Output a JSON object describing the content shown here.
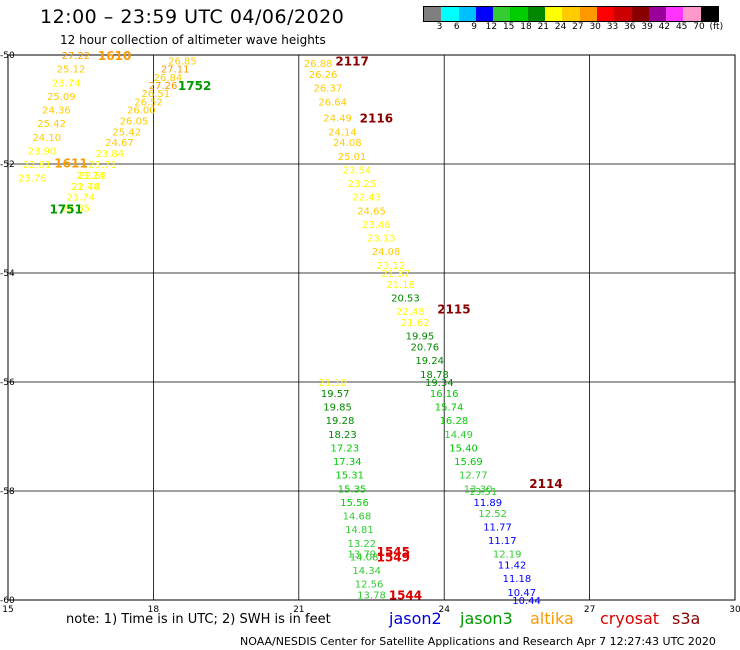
{
  "header": {
    "title": "12:00 – 23:59 UTC 04/06/2020",
    "subtitle": "12 hour collection of altimeter wave heights"
  },
  "scale": {
    "colors": [
      "#7f7f7f",
      "#00ffff",
      "#00bfff",
      "#0000ff",
      "#33cc33",
      "#00cc00",
      "#008800",
      "#ffff00",
      "#ffcc00",
      "#ff9900",
      "#ff0000",
      "#cc0000",
      "#880000",
      "#990099",
      "#ff33ff",
      "#ff99cc",
      "#000000"
    ],
    "labels": [
      "3",
      "6",
      "9",
      "12",
      "15",
      "18",
      "21",
      "24",
      "27",
      "30",
      "33",
      "36",
      "39",
      "42",
      "45",
      "70",
      "(ft)"
    ]
  },
  "note": "note:  1) Time is in UTC;  2) SWH is in feet",
  "satellites": [
    {
      "name": "jason2",
      "color": "#0000dd"
    },
    {
      "name": "jason3",
      "color": "#009900"
    },
    {
      "name": "altika",
      "color": "#ff9900"
    },
    {
      "name": "cryosat",
      "color": "#dd0000"
    },
    {
      "name": "s3a",
      "color": "#880000"
    }
  ],
  "footer": "NOAA/NESDIS Center for Satellite Applications and Research    Apr  7 12:27:43 UTC 2020",
  "chart_data": {
    "type": "scatter",
    "title": "12:00 – 23:59 UTC 04/06/2020",
    "subtitle": "12 hour collection of altimeter wave heights",
    "xlabel": "",
    "ylabel": "",
    "xlim": [
      15,
      30
    ],
    "ylim": [
      -60,
      -50
    ],
    "xticks": [
      15,
      18,
      21,
      24,
      27,
      30
    ],
    "yticks": [
      -50,
      -52,
      -54,
      -56,
      -58,
      -60
    ],
    "grid": true,
    "passes": [
      {
        "label": "1610",
        "label_pos": [
          17.2,
          -50.0
        ],
        "color": "#ff9900",
        "points": [
          [
            16.4,
            -50.0,
            "27.22"
          ],
          [
            16.3,
            -50.25,
            "25.12"
          ],
          [
            16.2,
            -50.5,
            "23.74"
          ],
          [
            16.1,
            -50.75,
            "25.09"
          ],
          [
            16.0,
            -51.0,
            "24.36"
          ],
          [
            15.9,
            -51.25,
            "25.42"
          ],
          [
            15.8,
            -51.5,
            "24.10"
          ],
          [
            15.7,
            -51.75,
            "23.90"
          ],
          [
            15.6,
            -52.0,
            "22.81"
          ],
          [
            15.5,
            -52.25,
            "23.76"
          ]
        ]
      },
      {
        "label": "1611",
        "label_pos": [
          16.3,
          -51.97
        ],
        "color": "#ff9900",
        "points": [
          [
            16.7,
            -52.2,
            "23.74"
          ],
          [
            16.6,
            -52.4,
            "21.74"
          ],
          [
            16.5,
            -52.6,
            "21.74"
          ],
          [
            16.4,
            -52.8,
            "22.85"
          ]
        ]
      },
      {
        "label": "1751",
        "label_pos": [
          16.2,
          -52.82
        ],
        "color": "#009900",
        "points": []
      },
      {
        "label": "1752",
        "label_pos": [
          18.85,
          -50.55
        ],
        "color": "#009900",
        "points": [
          [
            18.6,
            -50.1,
            "26.85"
          ],
          [
            18.45,
            -50.25,
            "27.11"
          ],
          [
            18.3,
            -50.4,
            "26.84"
          ],
          [
            18.2,
            -50.55,
            "27.26"
          ],
          [
            18.05,
            -50.7,
            "26.51"
          ],
          [
            17.9,
            -50.85,
            "26.52"
          ],
          [
            17.75,
            -51.0,
            "26.00"
          ],
          [
            17.6,
            -51.2,
            "26.05"
          ],
          [
            17.45,
            -51.4,
            "25.42"
          ],
          [
            17.3,
            -51.6,
            "24.67"
          ],
          [
            17.1,
            -51.8,
            "23.84"
          ],
          [
            16.95,
            -52.0,
            "23.71"
          ],
          [
            16.75,
            -52.2,
            "22.62"
          ],
          [
            16.6,
            -52.4,
            "22.48"
          ]
        ]
      },
      {
        "label": "2117",
        "label_pos": [
          22.1,
          -50.1
        ],
        "color": "#880000",
        "points": [
          [
            21.4,
            -50.15,
            "26.88"
          ],
          [
            21.5,
            -50.35,
            "26.26"
          ],
          [
            21.6,
            -50.6,
            "26.37"
          ],
          [
            21.7,
            -50.85,
            "26.64"
          ]
        ]
      },
      {
        "label": "2116",
        "label_pos": [
          22.6,
          -51.15
        ],
        "color": "#880000",
        "points": [
          [
            21.8,
            -51.15,
            "24.49"
          ],
          [
            21.9,
            -51.4,
            "24.14"
          ],
          [
            22.0,
            -51.6,
            "24.08"
          ],
          [
            22.1,
            -51.85,
            "25.01"
          ],
          [
            22.2,
            -52.1,
            "23.54"
          ],
          [
            22.3,
            -52.35,
            "23.25"
          ],
          [
            22.4,
            -52.6,
            "22.43"
          ],
          [
            22.5,
            -52.85,
            "24.65"
          ],
          [
            22.6,
            -53.1,
            "23.46"
          ],
          [
            22.7,
            -53.35,
            "23.13"
          ],
          [
            22.8,
            -53.6,
            "24.08"
          ],
          [
            22.9,
            -53.85,
            "23.12"
          ],
          [
            23.0,
            -54.0,
            "21.37"
          ],
          [
            23.1,
            -54.2,
            "21.18"
          ]
        ]
      },
      {
        "label": "2115",
        "label_pos": [
          24.2,
          -54.65
        ],
        "color": "#880000",
        "points": [
          [
            23.2,
            -54.45,
            "20.53"
          ],
          [
            23.3,
            -54.7,
            "22.48"
          ],
          [
            23.4,
            -54.9,
            "21.62"
          ],
          [
            23.5,
            -55.15,
            "19.95"
          ],
          [
            23.6,
            -55.35,
            "20.76"
          ],
          [
            23.7,
            -55.6,
            "19.24"
          ],
          [
            23.8,
            -55.85,
            "18.78"
          ],
          [
            23.9,
            -56.0,
            "19.34"
          ],
          [
            24.0,
            -56.2,
            "16.16"
          ],
          [
            24.1,
            -56.45,
            "15.74"
          ],
          [
            24.2,
            -56.7,
            "16.28"
          ],
          [
            24.3,
            -56.95,
            "14.49"
          ],
          [
            24.4,
            -57.2,
            "15.40"
          ],
          [
            24.5,
            -57.45,
            "15.69"
          ],
          [
            24.6,
            -57.7,
            "12.77"
          ],
          [
            24.7,
            -57.95,
            "13.30"
          ]
        ]
      },
      {
        "label": "2114",
        "label_pos": [
          26.1,
          -57.85
        ],
        "color": "#880000",
        "points": [
          [
            24.8,
            -58.0,
            "13.51"
          ],
          [
            24.9,
            -58.2,
            "11.89"
          ],
          [
            25.0,
            -58.4,
            "12.52"
          ],
          [
            25.1,
            -58.65,
            "11.77"
          ],
          [
            25.2,
            -58.9,
            "11.17"
          ],
          [
            25.3,
            -59.15,
            "12.19"
          ],
          [
            25.4,
            -59.35,
            "11.42"
          ],
          [
            25.5,
            -59.6,
            "11.18"
          ],
          [
            25.6,
            -59.85,
            "10.47"
          ],
          [
            25.7,
            -60.0,
            "10.44"
          ]
        ]
      },
      {
        "label": "1545",
        "label_pos": [
          22.95,
          -59.1
        ],
        "color": "#dd0000",
        "points": [
          [
            21.7,
            -56.0,
            "21.10"
          ],
          [
            21.75,
            -56.2,
            "19.57"
          ],
          [
            21.8,
            -56.45,
            "19.85"
          ],
          [
            21.85,
            -56.7,
            "19.28"
          ],
          [
            21.9,
            -56.95,
            "18.23"
          ],
          [
            21.95,
            -57.2,
            "17.23"
          ],
          [
            22.0,
            -57.45,
            "17.34"
          ],
          [
            22.05,
            -57.7,
            "15.31"
          ],
          [
            22.1,
            -57.95,
            "15.35"
          ],
          [
            22.15,
            -58.2,
            "15.56"
          ],
          [
            22.2,
            -58.45,
            "14.68"
          ],
          [
            22.25,
            -58.7,
            "14.81"
          ],
          [
            22.3,
            -58.95,
            "13.22"
          ],
          [
            22.35,
            -59.2,
            "14.08"
          ],
          [
            22.4,
            -59.45,
            "14.34"
          ],
          [
            22.45,
            -59.7,
            "12.56"
          ],
          [
            22.5,
            -59.9,
            "13.78"
          ]
        ]
      },
      {
        "label": "1549",
        "label_pos": [
          22.95,
          -59.2
        ],
        "color": "#dd0000",
        "points": [
          [
            22.3,
            -59.15,
            "13.79"
          ]
        ]
      },
      {
        "label": "1544",
        "label_pos": [
          23.2,
          -59.9
        ],
        "color": "#dd0000",
        "points": []
      }
    ]
  }
}
